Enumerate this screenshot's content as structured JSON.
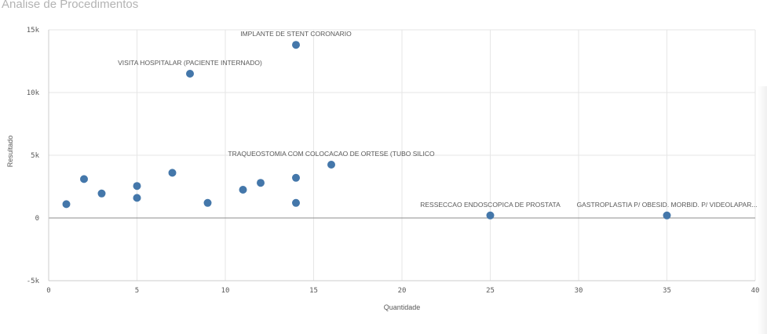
{
  "title": "Analise de Procedimentos",
  "colors": {
    "point": "#4477aa",
    "grid": "#e6e6e6",
    "zero_line": "#8c8c8c",
    "axis": "#cccccc"
  },
  "chart_data": {
    "type": "scatter",
    "title": "Analise de Procedimentos",
    "xlabel": "Quantidade",
    "ylabel": "Resultado",
    "xlim": [
      0,
      40
    ],
    "ylim": [
      -5000,
      15000
    ],
    "x_ticks": [
      0,
      5,
      10,
      15,
      20,
      25,
      30,
      35,
      40
    ],
    "y_ticks": [
      -5000,
      0,
      5000,
      10000,
      15000
    ],
    "x_tick_labels": [
      "0",
      "5",
      "10",
      "15",
      "20",
      "25",
      "30",
      "35",
      "40"
    ],
    "y_tick_labels": [
      "-5k",
      "0",
      "5k",
      "10k",
      "15k"
    ],
    "grid": true,
    "points": [
      {
        "x": 1,
        "y": 1100,
        "label": ""
      },
      {
        "x": 2,
        "y": 3100,
        "label": ""
      },
      {
        "x": 3,
        "y": 1950,
        "label": ""
      },
      {
        "x": 5,
        "y": 2550,
        "label": ""
      },
      {
        "x": 5,
        "y": 1600,
        "label": ""
      },
      {
        "x": 7,
        "y": 3600,
        "label": ""
      },
      {
        "x": 8,
        "y": 11500,
        "label": "VISITA HOSPITALAR (PACIENTE INTERNADO)"
      },
      {
        "x": 9,
        "y": 1200,
        "label": ""
      },
      {
        "x": 11,
        "y": 2250,
        "label": ""
      },
      {
        "x": 12,
        "y": 2800,
        "label": ""
      },
      {
        "x": 14,
        "y": 13800,
        "label": "IMPLANTE DE STENT CORONARIO"
      },
      {
        "x": 14,
        "y": 3200,
        "label": ""
      },
      {
        "x": 14,
        "y": 1200,
        "label": ""
      },
      {
        "x": 16,
        "y": 4250,
        "label": "TRAQUEOSTOMIA COM COLOCACAO DE ORTESE (TUBO SILICO"
      },
      {
        "x": 25,
        "y": 200,
        "label": "RESSECCAO ENDOSCOPICA DE PROSTATA"
      },
      {
        "x": 35,
        "y": 200,
        "label": "GASTROPLASTIA P/ OBESID. MORBID. P/ VIDEOLAPAR..."
      }
    ]
  }
}
